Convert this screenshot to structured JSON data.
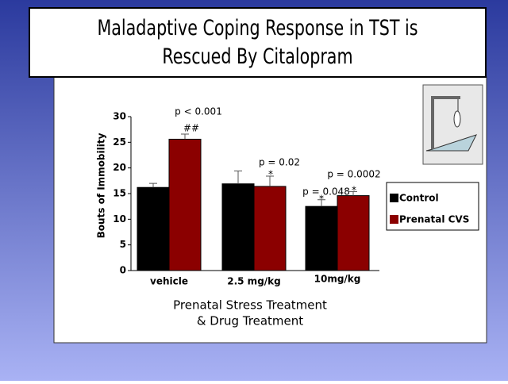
{
  "chart_data": {
    "type": "bar",
    "title": "Maladaptive Coping Response in TST is Rescued By Citalopram",
    "y_label": "Bouts of Immobility",
    "x_label": [
      "Prenatal Stress Treatment",
      "& Drug Treatment"
    ],
    "categories": [
      "vehicle",
      "2.5 mg/kg",
      "10mg/kg"
    ],
    "series": [
      {
        "name": "Control",
        "color": "#000000",
        "values": [
          16.2,
          16.9,
          12.5
        ],
        "errors": [
          0.8,
          2.5,
          1.3
        ]
      },
      {
        "name": "Prenatal CVS",
        "color": "#8b0000",
        "values": [
          25.6,
          16.4,
          14.6
        ],
        "errors": [
          1.0,
          2.0,
          0.8
        ]
      }
    ],
    "ylim": [
      0,
      30
    ],
    "yticks": [
      0,
      5,
      10,
      15,
      20,
      25,
      30
    ],
    "annotations": [
      "p < 0.001",
      "##",
      "p = 0.02",
      "*",
      "p = 0.0002",
      "p = 0.048",
      "*",
      "*"
    ],
    "legend": "right"
  }
}
